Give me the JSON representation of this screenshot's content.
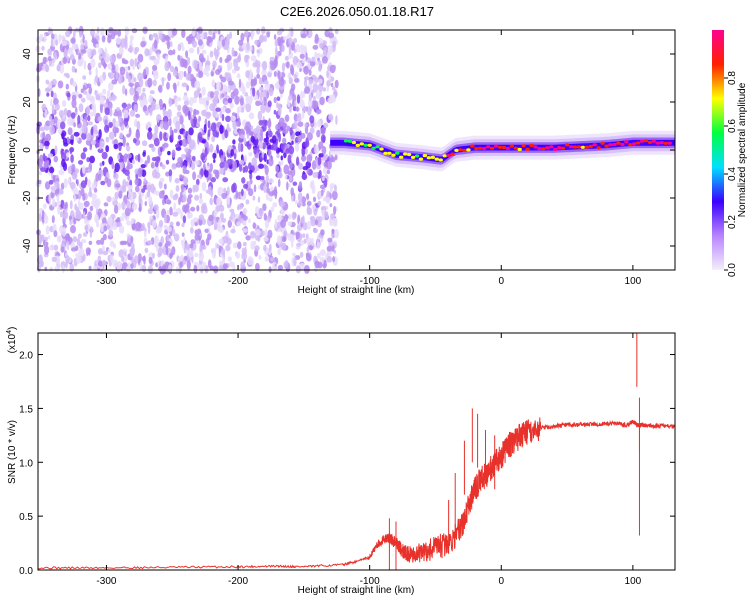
{
  "chart_data": [
    {
      "type": "heatmap",
      "title": "C2E6.2026.050.01.18.R17",
      "xlabel": "Height of straight line (km)",
      "ylabel": "Frequency (Hz)",
      "xlim": [
        -352,
        132
      ],
      "ylim": [
        -50,
        50
      ],
      "x_ticks": [
        -300,
        -200,
        -100,
        0,
        100
      ],
      "y_ticks": [
        -40,
        -20,
        0,
        20,
        40
      ],
      "colorbar": {
        "label": "Normalized spectral amplitude",
        "range": [
          0,
          1
        ],
        "ticks": [
          "0.0",
          "0.2",
          "0.4",
          "0.6",
          "0.8"
        ],
        "colors": [
          "#f4eefc",
          "#b884ff",
          "#3b00ff",
          "#00e0ff",
          "#00ff40",
          "#ffff00",
          "#ff2000",
          "#ff0090"
        ]
      },
      "trace": {
        "name": "",
        "points": [
          [
            -120,
            3
          ],
          [
            -100,
            2
          ],
          [
            -80,
            -2
          ],
          [
            -60,
            -3
          ],
          [
            -45,
            -4
          ],
          [
            -35,
            0
          ],
          [
            -20,
            1
          ],
          [
            0,
            1
          ],
          [
            40,
            1
          ],
          [
            80,
            2
          ],
          [
            100,
            3
          ],
          [
            132,
            3
          ]
        ]
      }
    },
    {
      "type": "line",
      "xlabel": "Height of straight line (km)",
      "ylabel": "SNR (10 * v/v)",
      "y_scale_label": "(x10",
      "y_scale_exp": "4",
      "y_scale_close": ")",
      "xlim": [
        -352,
        132
      ],
      "ylim": [
        0,
        2.2
      ],
      "x_ticks": [
        -300,
        -200,
        -100,
        0,
        100
      ],
      "y_ticks": [
        "0.0",
        "0.5",
        "1.0",
        "1.5",
        "2.0"
      ],
      "line_color": "#e8312a",
      "series": [
        {
          "x": [
            -352,
            -300,
            -250,
            -200,
            -170,
            -150,
            -120,
            -110,
            -100,
            -95,
            -90,
            -85,
            -80,
            -75,
            -70,
            -60,
            -50,
            -40,
            -30,
            -25,
            -20,
            -15,
            -10,
            -5,
            0,
            5,
            10,
            15,
            20,
            30,
            40,
            50,
            60,
            70,
            80,
            90,
            95,
            100,
            103,
            105,
            107,
            110,
            120,
            132
          ],
          "y": [
            0.02,
            0.02,
            0.025,
            0.03,
            0.035,
            0.03,
            0.05,
            0.08,
            0.12,
            0.22,
            0.28,
            0.3,
            0.25,
            0.18,
            0.14,
            0.16,
            0.2,
            0.25,
            0.4,
            0.6,
            0.75,
            0.85,
            0.9,
            1.0,
            1.05,
            1.15,
            1.2,
            1.25,
            1.28,
            1.32,
            1.33,
            1.35,
            1.35,
            1.35,
            1.36,
            1.36,
            1.34,
            1.38,
            1.35,
            1.34,
            1.35,
            1.34,
            1.34,
            1.33
          ]
        }
      ],
      "spikes": [
        {
          "x": -85,
          "y": 0.48
        },
        {
          "x": -80,
          "y": 0.45
        },
        {
          "x": -40,
          "y": 0.65
        },
        {
          "x": -35,
          "y": 0.9
        },
        {
          "x": -28,
          "y": 1.2
        },
        {
          "x": -22,
          "y": 1.5
        },
        {
          "x": -18,
          "y": 1.45
        },
        {
          "x": -12,
          "y": 1.3
        },
        {
          "x": -5,
          "y": 1.25
        },
        {
          "x": 103,
          "y": 2.2
        },
        {
          "x": 105,
          "y": 1.6
        },
        {
          "x": 105,
          "y": 0.32
        }
      ]
    }
  ]
}
